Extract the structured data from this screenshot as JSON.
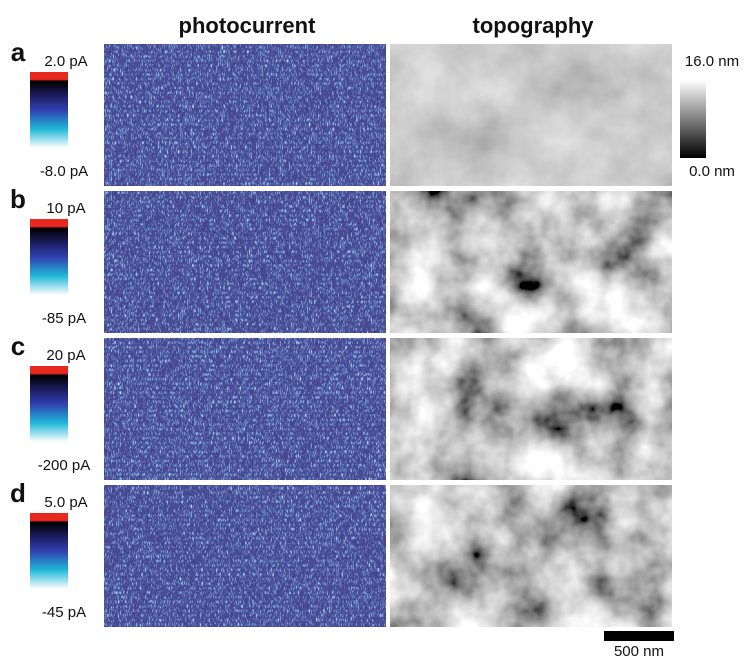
{
  "column_headers": [
    "photocurrent",
    "topography"
  ],
  "rows": [
    {
      "label": "a",
      "current_max": "2.0 pA",
      "current_min": "-8.0 pA"
    },
    {
      "label": "b",
      "current_max": "10 pA",
      "current_min": "-85 pA"
    },
    {
      "label": "c",
      "current_max": "20 pA",
      "current_min": "-200 pA"
    },
    {
      "label": "d",
      "current_max": "5.0 pA",
      "current_min": "-45 pA"
    }
  ],
  "topography_scale": {
    "max": "16.0 nm",
    "min": "0.0 nm"
  },
  "scale_bar": "500 nm"
}
